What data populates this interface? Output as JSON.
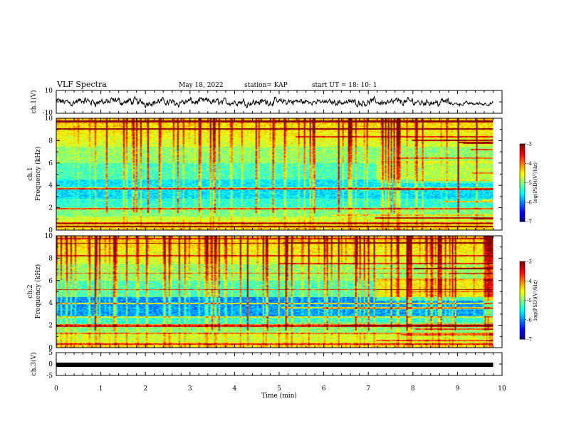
{
  "header": {
    "title": "VLF Spectra",
    "date": "May 18, 2022",
    "station": "station= KAP",
    "start": "start UT =  18: 10: 1"
  },
  "colors": {
    "axis": "#000000",
    "trace": "#000000",
    "spectrogram_low": "#0000cc",
    "spectrogram_high": "#ff0000"
  },
  "chart_data": [
    {
      "type": "line",
      "panel": "ch1-voltage",
      "ylabel": "ch.1(V)",
      "ylim": [
        -10,
        10
      ],
      "yticks": [
        "10",
        "-10"
      ],
      "xlim": [
        0,
        10
      ],
      "t_end_min": 9.8,
      "description_values": "waveform oscillating approx between -7 and 7 V, quieter after 8.8 min"
    },
    {
      "type": "heatmap",
      "panel": "ch1-spectrogram",
      "ylabel": "ch.1",
      "ylabel2": "Frequency (kHz)",
      "ylim": [
        0,
        10
      ],
      "yticks": [
        "0",
        "2",
        "4",
        "6",
        "8",
        "10"
      ],
      "xlim": [
        0,
        10
      ],
      "t_end_min": 9.8,
      "colorbar": {
        "label": "log(PSD)(V²/Hz)",
        "range": [
          -7,
          -3
        ],
        "ticks": [
          "-3",
          "-4",
          "-5",
          "-6",
          "-7"
        ]
      }
    },
    {
      "type": "heatmap",
      "panel": "ch2-spectrogram",
      "ylabel": "ch.2",
      "ylabel2": "Frequency (kHz)",
      "ylim": [
        0,
        10
      ],
      "yticks": [
        "0",
        "2",
        "4",
        "6",
        "8",
        "10"
      ],
      "xlim": [
        0,
        10
      ],
      "t_end_min": 9.8,
      "colorbar": {
        "label": "log(PSD)(V²/Hz)",
        "range": [
          -7,
          -3
        ],
        "ticks": [
          "-3",
          "-4",
          "-5",
          "-6",
          "-7"
        ]
      }
    },
    {
      "type": "line",
      "panel": "ch3-voltage",
      "ylabel": "ch.3(V)",
      "ylim": [
        -5,
        5
      ],
      "yticks": [
        "5",
        "0",
        "-5"
      ],
      "xlim": [
        0,
        10
      ],
      "xlabel": "Time (min)",
      "xticks": [
        "0",
        "1",
        "2",
        "3",
        "4",
        "5",
        "6",
        "7",
        "8",
        "9",
        "10"
      ],
      "t_end_min": 9.8,
      "level_v": -0.3
    }
  ]
}
